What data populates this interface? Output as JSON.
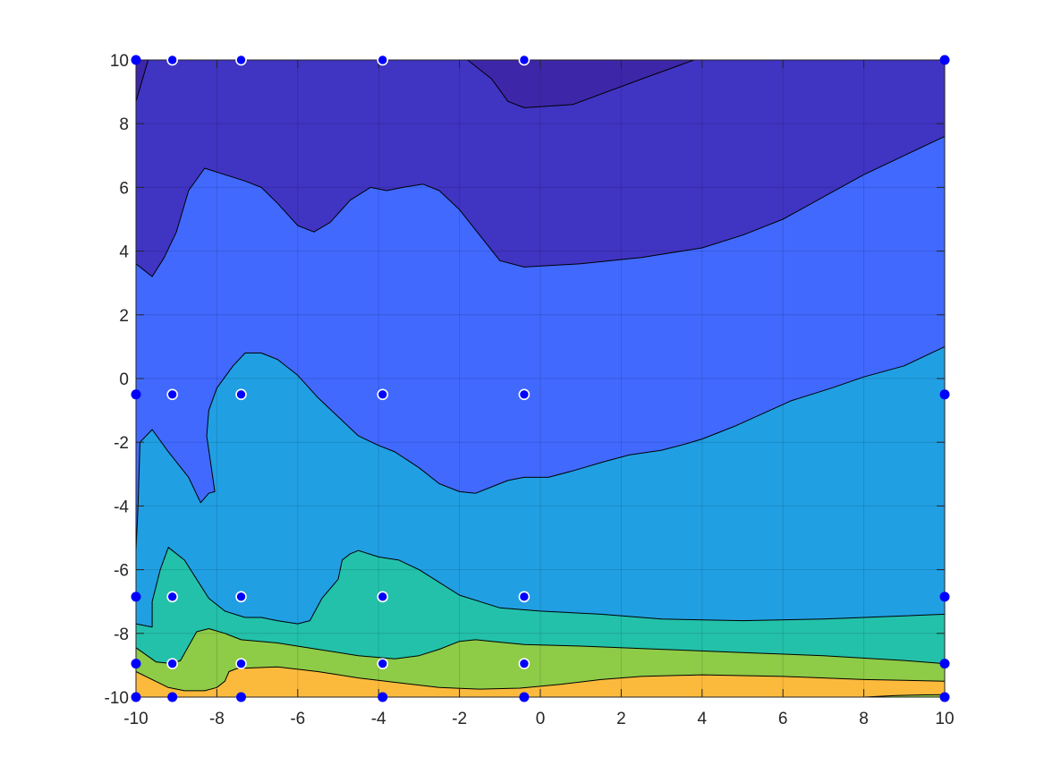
{
  "chart_data": {
    "type": "contourf",
    "title": "",
    "xlabel": "",
    "ylabel": "",
    "xlim": [
      -10,
      10
    ],
    "ylim": [
      -10,
      10
    ],
    "grid": true,
    "x_ticks": [
      -10,
      -8,
      -6,
      -4,
      -2,
      0,
      2,
      4,
      6,
      8,
      10
    ],
    "y_ticks": [
      -10,
      -8,
      -6,
      -4,
      -2,
      0,
      2,
      4,
      6,
      8,
      10
    ],
    "x_tick_labels": [
      "-10",
      "-8",
      "-6",
      "-4",
      "-2",
      "0",
      "2",
      "4",
      "6",
      "8",
      "10"
    ],
    "y_tick_labels": [
      "-10",
      "-8",
      "-6",
      "-4",
      "-2",
      "0",
      "2",
      "4",
      "6",
      "8",
      "10"
    ],
    "level_colors": [
      "#3D26A8",
      "#4034C2",
      "#4169FE",
      "#219FE3",
      "#23C1AA",
      "#8ECB47",
      "#FCBA3D"
    ],
    "contour_lines": [
      {
        "points": [
          [
            -10,
            8.7
          ],
          [
            -9.7,
            10
          ]
        ]
      },
      {
        "points": [
          [
            -1.8,
            10
          ],
          [
            -1.2,
            9.4
          ],
          [
            -0.8,
            8.7
          ],
          [
            -0.4,
            8.5
          ],
          [
            0.8,
            8.6
          ],
          [
            2.5,
            9.4
          ],
          [
            3.8,
            10
          ]
        ]
      },
      {
        "points": [
          [
            -10,
            3.6
          ],
          [
            -9.6,
            3.2
          ],
          [
            -9.3,
            3.8
          ],
          [
            -9.0,
            4.6
          ],
          [
            -8.7,
            5.9
          ],
          [
            -8.3,
            6.6
          ],
          [
            -7.8,
            6.4
          ],
          [
            -7.3,
            6.2
          ],
          [
            -6.9,
            6.0
          ],
          [
            -6.5,
            5.5
          ],
          [
            -6.0,
            4.8
          ],
          [
            -5.6,
            4.6
          ],
          [
            -5.2,
            4.9
          ],
          [
            -4.7,
            5.6
          ],
          [
            -4.2,
            6.0
          ],
          [
            -3.8,
            5.9
          ],
          [
            -3.4,
            6.0
          ],
          [
            -2.9,
            6.1
          ],
          [
            -2.5,
            5.9
          ],
          [
            -2.0,
            5.3
          ],
          [
            -1.5,
            4.5
          ],
          [
            -1.0,
            3.7
          ],
          [
            -0.4,
            3.5
          ],
          [
            1.0,
            3.6
          ],
          [
            2.5,
            3.8
          ],
          [
            4.0,
            4.1
          ],
          [
            5.0,
            4.5
          ],
          [
            6.0,
            5.0
          ],
          [
            7.0,
            5.7
          ],
          [
            8.0,
            6.4
          ],
          [
            9.0,
            7.0
          ],
          [
            10,
            7.6
          ]
        ]
      },
      {
        "points": [
          [
            -10,
            -5.4
          ],
          [
            -9.95,
            -4.0
          ],
          [
            -9.9,
            -2.0
          ],
          [
            -9.6,
            -1.6
          ],
          [
            -9.2,
            -2.3
          ],
          [
            -8.7,
            -3.1
          ],
          [
            -8.4,
            -3.9
          ],
          [
            -8.2,
            -3.6
          ],
          [
            -8.05,
            -3.55
          ],
          [
            -8.25,
            -1.8
          ],
          [
            -8.2,
            -1.0
          ],
          [
            -8.0,
            -0.3
          ],
          [
            -7.6,
            0.4
          ],
          [
            -7.3,
            0.8
          ],
          [
            -6.9,
            0.8
          ],
          [
            -6.5,
            0.6
          ],
          [
            -6.0,
            0.1
          ],
          [
            -5.5,
            -0.6
          ],
          [
            -5.0,
            -1.2
          ],
          [
            -4.5,
            -1.8
          ],
          [
            -4.0,
            -2.1
          ],
          [
            -3.6,
            -2.3
          ],
          [
            -3.0,
            -2.8
          ],
          [
            -2.5,
            -3.3
          ],
          [
            -2.0,
            -3.55
          ],
          [
            -1.6,
            -3.6
          ],
          [
            -1.2,
            -3.4
          ],
          [
            -0.8,
            -3.2
          ],
          [
            -0.4,
            -3.1
          ],
          [
            0.2,
            -3.1
          ],
          [
            0.8,
            -2.9
          ],
          [
            1.6,
            -2.6
          ],
          [
            2.2,
            -2.4
          ],
          [
            3.0,
            -2.25
          ],
          [
            3.6,
            -2.05
          ],
          [
            4.0,
            -1.9
          ],
          [
            4.8,
            -1.5
          ],
          [
            5.5,
            -1.1
          ],
          [
            6.2,
            -0.7
          ],
          [
            7.2,
            -0.3
          ],
          [
            8.0,
            0.05
          ],
          [
            9.0,
            0.4
          ],
          [
            10,
            1.0
          ]
        ]
      },
      {
        "points": [
          [
            -10,
            -7.7
          ],
          [
            -9.6,
            -7.8
          ],
          [
            -9.6,
            -7.0
          ],
          [
            -9.4,
            -6.0
          ],
          [
            -9.2,
            -5.3
          ],
          [
            -8.8,
            -5.7
          ],
          [
            -8.5,
            -6.3
          ],
          [
            -8.2,
            -6.9
          ],
          [
            -7.8,
            -7.3
          ],
          [
            -7.3,
            -7.5
          ],
          [
            -6.9,
            -7.5
          ],
          [
            -6.5,
            -7.6
          ],
          [
            -6.0,
            -7.7
          ],
          [
            -5.7,
            -7.6
          ],
          [
            -5.4,
            -6.9
          ],
          [
            -5.0,
            -6.3
          ],
          [
            -4.9,
            -5.7
          ],
          [
            -4.7,
            -5.5
          ],
          [
            -4.5,
            -5.4
          ],
          [
            -4.0,
            -5.6
          ],
          [
            -3.5,
            -5.7
          ],
          [
            -3.0,
            -6.0
          ],
          [
            -2.5,
            -6.4
          ],
          [
            -2.0,
            -6.8
          ],
          [
            -1.5,
            -7.0
          ],
          [
            -1.0,
            -7.2
          ],
          [
            0.0,
            -7.3
          ],
          [
            1.5,
            -7.4
          ],
          [
            3.0,
            -7.55
          ],
          [
            5.0,
            -7.6
          ],
          [
            7.0,
            -7.55
          ],
          [
            9.0,
            -7.45
          ],
          [
            10,
            -7.4
          ]
        ]
      },
      {
        "points": [
          [
            -10,
            -8.45
          ],
          [
            -9.5,
            -8.9
          ],
          [
            -9.1,
            -8.95
          ],
          [
            -8.9,
            -8.85
          ],
          [
            -8.7,
            -8.4
          ],
          [
            -8.5,
            -7.95
          ],
          [
            -8.2,
            -7.85
          ],
          [
            -7.8,
            -8.0
          ],
          [
            -7.4,
            -8.2
          ],
          [
            -6.5,
            -8.3
          ],
          [
            -5.5,
            -8.5
          ],
          [
            -4.5,
            -8.7
          ],
          [
            -3.6,
            -8.8
          ],
          [
            -3.0,
            -8.7
          ],
          [
            -2.5,
            -8.5
          ],
          [
            -2.0,
            -8.25
          ],
          [
            -1.6,
            -8.2
          ],
          [
            -1.2,
            -8.25
          ],
          [
            -0.4,
            -8.35
          ],
          [
            1.0,
            -8.4
          ],
          [
            3.0,
            -8.5
          ],
          [
            5.0,
            -8.6
          ],
          [
            7.0,
            -8.7
          ],
          [
            9.0,
            -8.85
          ],
          [
            10,
            -8.95
          ]
        ]
      },
      {
        "points": [
          [
            -10,
            -9.2
          ],
          [
            -9.6,
            -9.45
          ],
          [
            -9.2,
            -9.7
          ],
          [
            -8.8,
            -9.8
          ],
          [
            -8.3,
            -9.8
          ],
          [
            -8.0,
            -9.7
          ],
          [
            -7.8,
            -9.5
          ],
          [
            -7.7,
            -9.2
          ],
          [
            -7.5,
            -9.1
          ],
          [
            -6.5,
            -9.05
          ],
          [
            -5.5,
            -9.2
          ],
          [
            -4.5,
            -9.4
          ],
          [
            -3.5,
            -9.55
          ],
          [
            -2.5,
            -9.7
          ],
          [
            -1.5,
            -9.75
          ],
          [
            -0.5,
            -9.72
          ],
          [
            0.5,
            -9.6
          ],
          [
            1.5,
            -9.45
          ],
          [
            2.5,
            -9.35
          ],
          [
            4.0,
            -9.3
          ],
          [
            6.0,
            -9.35
          ],
          [
            8.0,
            -9.45
          ],
          [
            10,
            -9.5
          ]
        ]
      },
      {
        "points": [
          [
            8.0,
            -10
          ],
          [
            8.8,
            -9.95
          ],
          [
            9.5,
            -9.93
          ],
          [
            10,
            -9.92
          ]
        ]
      }
    ],
    "sample_points": [
      {
        "x": -10,
        "y": 10,
        "edge": false
      },
      {
        "x": -9.1,
        "y": 10,
        "edge": true
      },
      {
        "x": -7.4,
        "y": 10,
        "edge": true
      },
      {
        "x": -3.9,
        "y": 10,
        "edge": true
      },
      {
        "x": -0.4,
        "y": 10,
        "edge": true
      },
      {
        "x": 10,
        "y": 10,
        "edge": false
      },
      {
        "x": -10,
        "y": -0.5,
        "edge": false
      },
      {
        "x": -9.1,
        "y": -0.5,
        "edge": true
      },
      {
        "x": -7.4,
        "y": -0.5,
        "edge": true
      },
      {
        "x": -3.9,
        "y": -0.5,
        "edge": true
      },
      {
        "x": -0.4,
        "y": -0.5,
        "edge": true
      },
      {
        "x": 10,
        "y": -0.5,
        "edge": false
      },
      {
        "x": -10,
        "y": -6.85,
        "edge": false
      },
      {
        "x": -9.1,
        "y": -6.85,
        "edge": true
      },
      {
        "x": -7.4,
        "y": -6.85,
        "edge": true
      },
      {
        "x": -3.9,
        "y": -6.85,
        "edge": true
      },
      {
        "x": -0.4,
        "y": -6.85,
        "edge": true
      },
      {
        "x": 10,
        "y": -6.85,
        "edge": false
      },
      {
        "x": -10,
        "y": -8.95,
        "edge": false
      },
      {
        "x": -9.1,
        "y": -8.95,
        "edge": true
      },
      {
        "x": -7.4,
        "y": -8.95,
        "edge": true
      },
      {
        "x": -3.9,
        "y": -8.95,
        "edge": true
      },
      {
        "x": -0.4,
        "y": -8.95,
        "edge": true
      },
      {
        "x": 10,
        "y": -8.95,
        "edge": false
      },
      {
        "x": -10,
        "y": -10,
        "edge": false
      },
      {
        "x": -9.1,
        "y": -10,
        "edge": false
      },
      {
        "x": -7.4,
        "y": -10,
        "edge": false
      },
      {
        "x": -3.9,
        "y": -10,
        "edge": false
      },
      {
        "x": -0.4,
        "y": -10,
        "edge": false
      },
      {
        "x": 10,
        "y": -10,
        "edge": false
      }
    ],
    "marker_color": "#0000FF"
  }
}
